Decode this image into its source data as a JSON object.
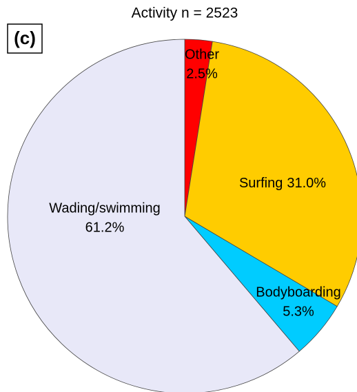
{
  "chart_data": {
    "type": "pie",
    "title": "Activity n = 2523",
    "panel_label": "(c)",
    "categories": [
      "Other",
      "Surfing",
      "Bodyboarding",
      "Wading/swimming"
    ],
    "values": [
      2.5,
      31.0,
      5.3,
      61.2
    ],
    "value_labels": [
      "2.5%",
      "31.0%",
      "5.3%",
      "61.2%"
    ],
    "colors": [
      "#ff0000",
      "#ffcc00",
      "#00ccff",
      "#e8e8f8"
    ]
  }
}
